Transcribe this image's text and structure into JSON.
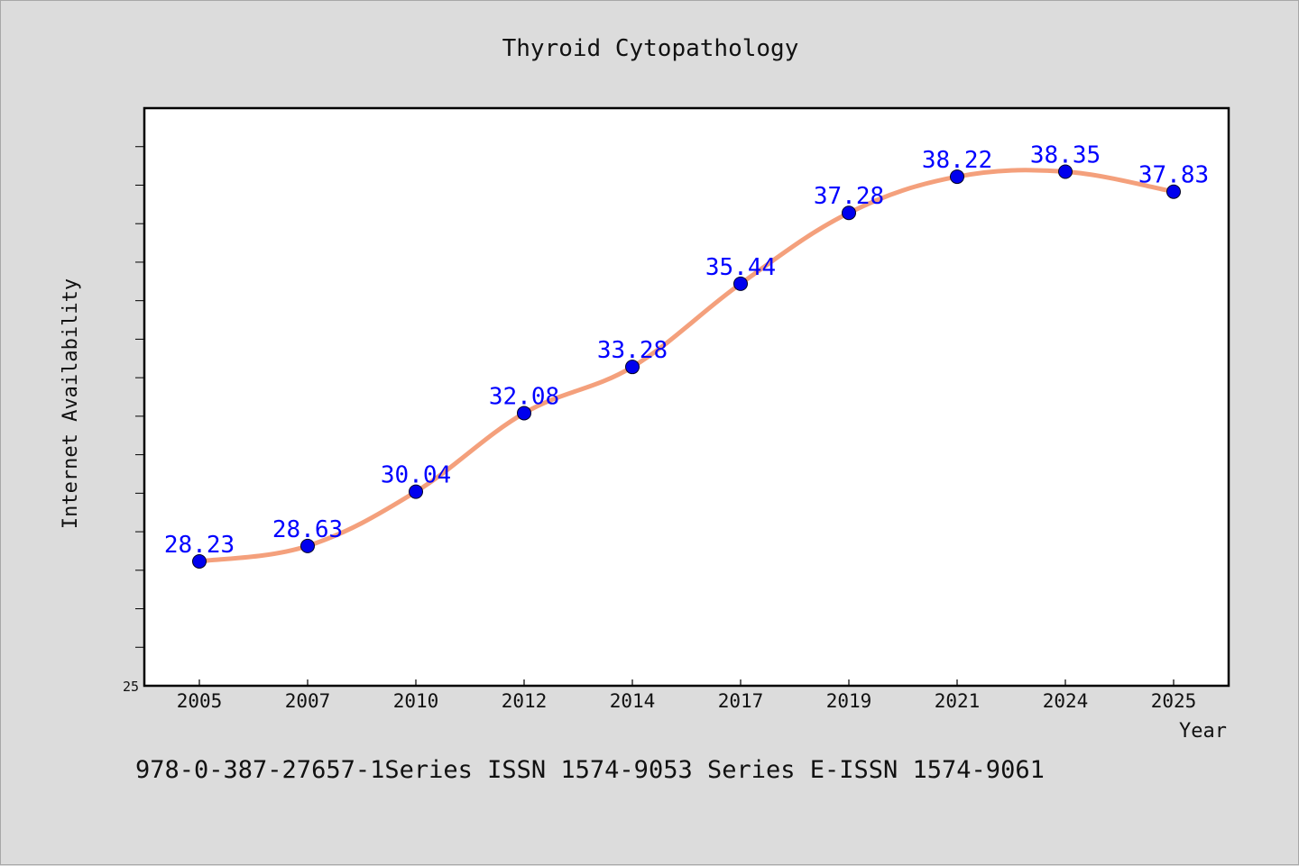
{
  "chart_data": {
    "type": "line",
    "title": "Thyroid Cytopathology",
    "xlabel": "Year",
    "ylabel": "Internet Availability",
    "categories": [
      "2005",
      "2007",
      "2010",
      "2012",
      "2014",
      "2017",
      "2019",
      "2021",
      "2024",
      "2025"
    ],
    "series": [
      {
        "values": [
          28.23,
          28.63,
          30.04,
          32.08,
          33.28,
          35.44,
          37.28,
          38.22,
          38.35,
          37.83
        ],
        "data_labels": [
          "28.23",
          "28.63",
          "30.04",
          "32.08",
          "33.28",
          "35.44",
          "37.28",
          "38.22",
          "38.35",
          "37.83"
        ],
        "line_color": "#f4a07c",
        "marker_color": "#0000ee"
      }
    ],
    "ylim": [
      25,
      40
    ],
    "ytick_min_label": "25",
    "grid": false,
    "legend": "none"
  },
  "footer": {
    "text": "978-0-387-27657-1Series ISSN 1574-9053 Series E-ISSN 1574-9061"
  },
  "colors": {
    "background": "#dcdcdc",
    "plot_background": "#ffffff",
    "label_color": "#0000ff"
  }
}
